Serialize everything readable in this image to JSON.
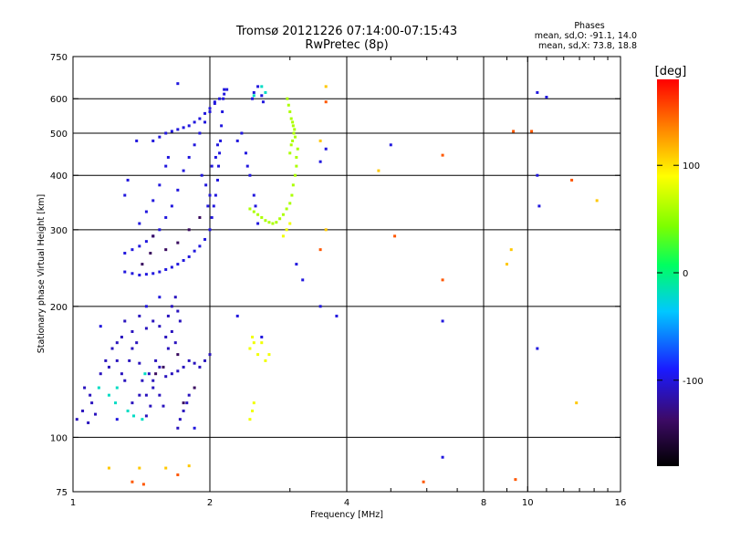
{
  "chart_data": {
    "type": "scatter",
    "title": "Tromsø 20121226 07:14:00-07:15:43",
    "subtitle": "RwPretec (8p)",
    "xlabel": "Frequency [MHz]",
    "ylabel": "Stationary phase Virtual Height [km]",
    "x_scale": "log2",
    "y_scale": "log",
    "xlim": [
      1,
      16
    ],
    "ylim": [
      75,
      750
    ],
    "x_ticks": [
      1,
      2,
      4,
      8,
      10,
      16
    ],
    "x_minor_ticks": [
      3,
      5,
      6,
      7,
      9,
      11,
      12,
      13,
      14,
      15
    ],
    "y_ticks": [
      75,
      100,
      200,
      300,
      400,
      500,
      600,
      750
    ],
    "grid": true,
    "colorbar": {
      "label": "[deg]",
      "min": -180,
      "max": 180,
      "tick_labels": [
        "100",
        "0",
        "-100"
      ],
      "tick_values": [
        100,
        0,
        -100
      ]
    },
    "stats": {
      "heading": "Phases",
      "line1": "mean, sd,O: -91.1, 14.0",
      "line2": "mean, sd,X:  73.8, 18.8"
    },
    "series": [
      {
        "phase": -110,
        "points": [
          [
            1.02,
            110
          ],
          [
            1.05,
            115
          ],
          [
            1.08,
            108
          ],
          [
            1.1,
            120
          ],
          [
            1.12,
            113
          ],
          [
            1.06,
            130
          ],
          [
            1.09,
            125
          ],
          [
            1.15,
            140
          ],
          [
            1.18,
            150
          ],
          [
            1.2,
            145
          ],
          [
            1.22,
            160
          ],
          [
            1.25,
            150
          ],
          [
            1.28,
            140
          ],
          [
            1.3,
            135
          ],
          [
            1.33,
            150
          ],
          [
            1.35,
            160
          ],
          [
            1.38,
            165
          ],
          [
            1.4,
            148
          ],
          [
            1.42,
            135
          ],
          [
            1.45,
            125
          ],
          [
            1.47,
            140
          ],
          [
            1.5,
            135
          ],
          [
            1.52,
            150
          ],
          [
            1.55,
            145
          ],
          [
            1.6,
            138
          ],
          [
            1.65,
            140
          ],
          [
            1.7,
            142
          ],
          [
            1.75,
            145
          ],
          [
            1.8,
            150
          ],
          [
            1.85,
            148
          ],
          [
            1.9,
            145
          ],
          [
            1.95,
            150
          ],
          [
            2.0,
            155
          ],
          [
            1.35,
            120
          ],
          [
            1.4,
            125
          ],
          [
            1.45,
            112
          ],
          [
            1.48,
            118
          ],
          [
            1.5,
            130
          ],
          [
            1.55,
            125
          ],
          [
            1.58,
            118
          ],
          [
            1.62,
            190
          ],
          [
            1.65,
            200
          ],
          [
            1.68,
            210
          ],
          [
            1.7,
            195
          ],
          [
            1.72,
            185
          ],
          [
            1.65,
            175
          ],
          [
            1.68,
            165
          ],
          [
            1.62,
            160
          ],
          [
            1.6,
            170
          ],
          [
            1.55,
            180
          ],
          [
            1.5,
            185
          ],
          [
            1.45,
            178
          ],
          [
            1.4,
            190
          ],
          [
            1.35,
            175
          ],
          [
            1.3,
            185
          ],
          [
            1.28,
            170
          ],
          [
            1.25,
            165
          ],
          [
            1.72,
            110
          ],
          [
            1.7,
            105
          ],
          [
            1.75,
            115
          ],
          [
            1.78,
            120
          ],
          [
            1.8,
            125
          ]
        ]
      },
      {
        "phase": -100,
        "points": [
          [
            1.3,
            240
          ],
          [
            1.35,
            238
          ],
          [
            1.4,
            236
          ],
          [
            1.45,
            237
          ],
          [
            1.5,
            238
          ],
          [
            1.55,
            240
          ],
          [
            1.6,
            243
          ],
          [
            1.65,
            246
          ],
          [
            1.7,
            250
          ],
          [
            1.75,
            255
          ],
          [
            1.8,
            260
          ],
          [
            1.85,
            268
          ],
          [
            1.9,
            275
          ],
          [
            1.95,
            285
          ],
          [
            2.0,
            300
          ],
          [
            2.02,
            320
          ],
          [
            2.04,
            340
          ],
          [
            2.06,
            360
          ],
          [
            2.08,
            390
          ],
          [
            2.09,
            420
          ],
          [
            2.1,
            450
          ],
          [
            2.11,
            480
          ],
          [
            2.12,
            520
          ],
          [
            2.13,
            560
          ],
          [
            2.14,
            600
          ],
          [
            2.15,
            630
          ],
          [
            1.3,
            265
          ],
          [
            1.35,
            270
          ],
          [
            1.4,
            275
          ],
          [
            1.45,
            282
          ],
          [
            1.5,
            290
          ],
          [
            1.55,
            300
          ],
          [
            1.6,
            320
          ],
          [
            1.65,
            340
          ],
          [
            1.7,
            370
          ],
          [
            1.75,
            410
          ],
          [
            1.8,
            440
          ],
          [
            1.85,
            470
          ],
          [
            1.9,
            500
          ],
          [
            1.95,
            530
          ],
          [
            2.0,
            560
          ],
          [
            2.05,
            590
          ],
          [
            1.5,
            480
          ],
          [
            1.55,
            490
          ],
          [
            1.6,
            500
          ],
          [
            1.65,
            505
          ],
          [
            1.7,
            510
          ],
          [
            1.75,
            515
          ],
          [
            1.8,
            520
          ],
          [
            1.85,
            530
          ],
          [
            1.9,
            540
          ],
          [
            1.95,
            555
          ],
          [
            2.0,
            570
          ],
          [
            2.05,
            585
          ],
          [
            2.1,
            600
          ],
          [
            2.15,
            615
          ],
          [
            2.18,
            630
          ],
          [
            1.92,
            400
          ],
          [
            1.96,
            380
          ],
          [
            2.0,
            360
          ],
          [
            1.98,
            340
          ],
          [
            2.02,
            420
          ],
          [
            2.06,
            440
          ],
          [
            2.08,
            470
          ],
          [
            1.55,
            380
          ],
          [
            1.6,
            420
          ],
          [
            1.62,
            440
          ],
          [
            1.5,
            350
          ],
          [
            1.45,
            330
          ],
          [
            1.4,
            310
          ],
          [
            1.7,
            650
          ],
          [
            1.3,
            360
          ],
          [
            1.32,
            390
          ],
          [
            1.38,
            480
          ],
          [
            2.48,
            600
          ],
          [
            2.5,
            620
          ],
          [
            2.55,
            640
          ],
          [
            2.6,
            610
          ],
          [
            2.62,
            590
          ],
          [
            2.3,
            480
          ],
          [
            2.35,
            500
          ],
          [
            2.4,
            450
          ],
          [
            2.42,
            420
          ],
          [
            2.45,
            400
          ],
          [
            2.5,
            360
          ],
          [
            2.52,
            340
          ],
          [
            2.55,
            310
          ],
          [
            3.5,
            200
          ],
          [
            3.8,
            190
          ],
          [
            3.2,
            230
          ],
          [
            3.1,
            250
          ],
          [
            3.5,
            430
          ],
          [
            3.6,
            460
          ],
          [
            5.0,
            470
          ],
          [
            6.5,
            185
          ],
          [
            6.5,
            90
          ],
          [
            10.5,
            620
          ],
          [
            11.0,
            605
          ],
          [
            10.5,
            400
          ],
          [
            10.6,
            340
          ],
          [
            10.5,
            160
          ],
          [
            1.15,
            180
          ],
          [
            1.25,
            110
          ],
          [
            1.45,
            200
          ],
          [
            1.55,
            210
          ],
          [
            1.85,
            105
          ],
          [
            2.3,
            190
          ],
          [
            2.6,
            170
          ]
        ]
      },
      {
        "phase": -140,
        "points": [
          [
            1.5,
            290
          ],
          [
            1.6,
            270
          ],
          [
            1.7,
            280
          ],
          [
            1.8,
            300
          ],
          [
            1.9,
            320
          ],
          [
            1.42,
            250
          ],
          [
            1.48,
            265
          ],
          [
            1.52,
            140
          ],
          [
            1.58,
            145
          ],
          [
            1.7,
            155
          ],
          [
            1.75,
            120
          ],
          [
            1.85,
            130
          ]
        ]
      },
      {
        "phase": -20,
        "points": [
          [
            1.14,
            130
          ],
          [
            1.2,
            125
          ],
          [
            1.25,
            130
          ],
          [
            1.32,
            115
          ],
          [
            1.36,
            112
          ],
          [
            1.42,
            110
          ],
          [
            1.44,
            140
          ],
          [
            1.24,
            120
          ],
          [
            2.6,
            640
          ],
          [
            2.65,
            620
          ],
          [
            2.5,
            610
          ]
        ]
      },
      {
        "phase": 60,
        "points": [
          [
            3.0,
            450
          ],
          [
            3.02,
            470
          ],
          [
            3.04,
            480
          ],
          [
            3.06,
            500
          ],
          [
            3.05,
            520
          ],
          [
            3.02,
            540
          ],
          [
            3.0,
            560
          ],
          [
            2.98,
            580
          ],
          [
            2.96,
            600
          ],
          [
            3.1,
            420
          ],
          [
            3.08,
            400
          ],
          [
            3.05,
            380
          ],
          [
            3.03,
            360
          ],
          [
            3.0,
            345
          ],
          [
            2.95,
            335
          ],
          [
            2.9,
            325
          ],
          [
            2.85,
            318
          ],
          [
            2.8,
            312
          ],
          [
            2.75,
            310
          ],
          [
            2.7,
            312
          ],
          [
            2.65,
            315
          ],
          [
            2.6,
            320
          ],
          [
            2.55,
            325
          ],
          [
            2.5,
            330
          ],
          [
            2.45,
            335
          ],
          [
            3.1,
            440
          ],
          [
            3.12,
            460
          ],
          [
            3.08,
            490
          ],
          [
            3.07,
            510
          ],
          [
            3.04,
            530
          ]
        ]
      },
      {
        "phase": 85,
        "points": [
          [
            2.45,
            110
          ],
          [
            2.48,
            115
          ],
          [
            2.5,
            120
          ],
          [
            2.45,
            160
          ],
          [
            2.5,
            165
          ],
          [
            2.55,
            155
          ],
          [
            2.48,
            170
          ],
          [
            2.65,
            150
          ],
          [
            2.7,
            155
          ],
          [
            2.6,
            165
          ],
          [
            2.9,
            290
          ],
          [
            2.95,
            300
          ],
          [
            3.0,
            310
          ]
        ]
      },
      {
        "phase": 110,
        "points": [
          [
            3.5,
            480
          ],
          [
            3.6,
            300
          ],
          [
            4.7,
            410
          ],
          [
            9.2,
            270
          ],
          [
            9.0,
            250
          ],
          [
            3.6,
            640
          ],
          [
            1.4,
            85
          ],
          [
            1.6,
            85
          ],
          [
            1.8,
            86
          ],
          [
            1.2,
            85
          ],
          [
            12.8,
            120
          ],
          [
            14.2,
            350
          ]
        ]
      },
      {
        "phase": 150,
        "points": [
          [
            3.5,
            270
          ],
          [
            3.6,
            590
          ],
          [
            5.1,
            290
          ],
          [
            6.5,
            445
          ],
          [
            6.5,
            230
          ],
          [
            9.3,
            505
          ],
          [
            10.2,
            505
          ],
          [
            12.5,
            390
          ],
          [
            1.43,
            78
          ],
          [
            1.7,
            82
          ],
          [
            1.35,
            79
          ],
          [
            5.9,
            79
          ],
          [
            9.4,
            80
          ]
        ]
      }
    ]
  }
}
